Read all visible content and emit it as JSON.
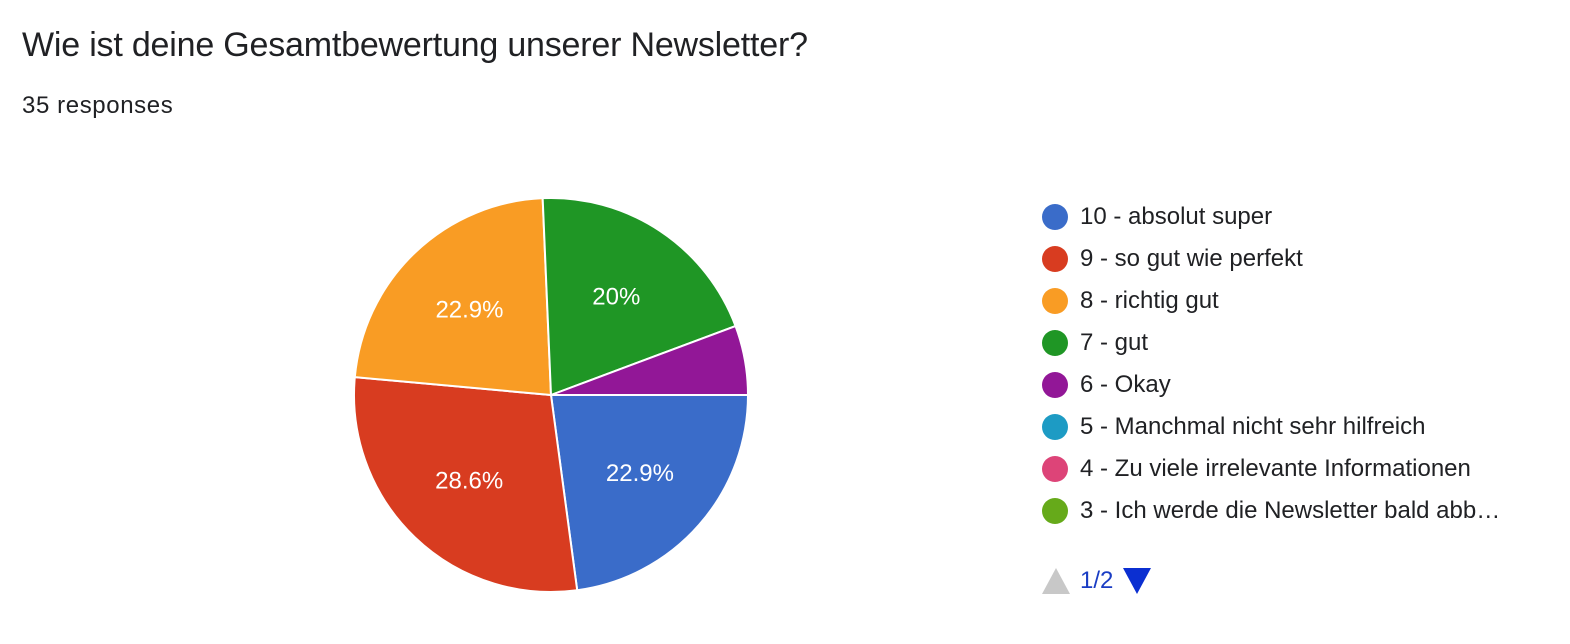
{
  "header": {
    "title": "Wie ist deine Gesamtbewertung unserer Newsletter?",
    "responses": "35 responses"
  },
  "chart_data": {
    "type": "pie",
    "slices": [
      {
        "name": "10 - absolut super",
        "value": 22.9,
        "label": "22.9%",
        "color": "#3a6cc9"
      },
      {
        "name": "9 - so gut wie perfekt",
        "value": 28.6,
        "label": "28.6%",
        "color": "#d83c20"
      },
      {
        "name": "8 - richtig gut",
        "value": 22.9,
        "label": "22.9%",
        "color": "#f99c24"
      },
      {
        "name": "7 - gut",
        "value": 20.0,
        "label": "20%",
        "color": "#1f9625"
      },
      {
        "name": "6 - Okay",
        "value": 5.7,
        "label": "",
        "color": "#921797"
      },
      {
        "name": "5 - Manchmal nicht sehr hilfreich",
        "value": 0,
        "label": "",
        "color": "#1d9bc4"
      },
      {
        "name": "4 - Zu viele irrelevante Informationen",
        "value": 0,
        "label": "",
        "color": "#dd4478"
      },
      {
        "name": "3 - Ich werde die Newsletter bald abb…",
        "value": 0,
        "label": "",
        "color": "#66aa1a"
      }
    ],
    "legend_position": "right"
  },
  "legend": {
    "items": [
      {
        "label": "10 - absolut super",
        "color": "#3a6cc9"
      },
      {
        "label": "9 - so gut wie perfekt",
        "color": "#d83c20"
      },
      {
        "label": "8 - richtig gut",
        "color": "#f99c24"
      },
      {
        "label": "7 - gut",
        "color": "#1f9625"
      },
      {
        "label": "6 - Okay",
        "color": "#921797"
      },
      {
        "label": "5 - Manchmal nicht sehr hilfreich",
        "color": "#1d9bc4"
      },
      {
        "label": "4 - Zu viele irrelevante Informationen",
        "color": "#dd4478"
      },
      {
        "label": "3 - Ich werde die Newsletter bald abb…",
        "color": "#66aa1a"
      }
    ],
    "pager": {
      "label": "1/2",
      "up_icon": "triangle-up-icon",
      "down_icon": "triangle-down-icon"
    }
  }
}
